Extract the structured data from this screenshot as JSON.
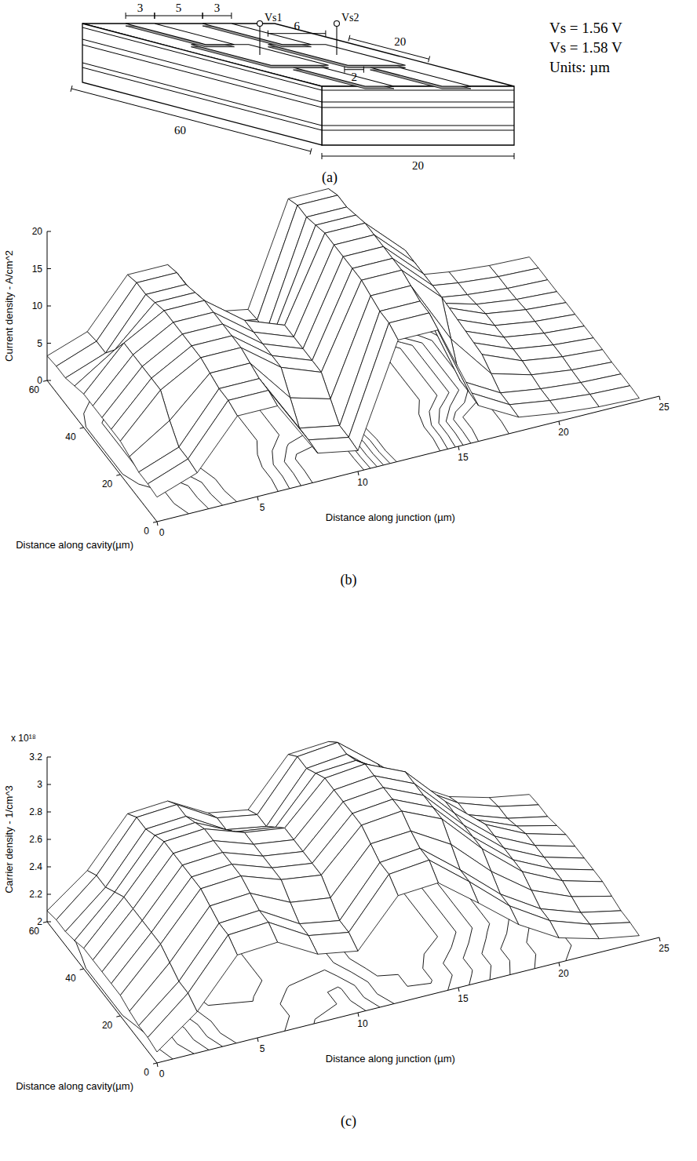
{
  "diagram": {
    "title": "(a)",
    "terminals": [
      "Vs1",
      "Vs2"
    ],
    "dimensions": {
      "stripe_1_width": "3",
      "stripe_gap": "5",
      "stripe_2_width": "3",
      "pad_width": "6",
      "pad_length": "20",
      "pad_gap": "2",
      "cavity_length": "60",
      "device_width": "20"
    },
    "notes": [
      "Vs = 1.56 V",
      "Vs = 1.58 V",
      "Units: µm"
    ]
  },
  "chart_data": [
    {
      "type": "surface",
      "title": "(b)",
      "color": "#000000",
      "x_label": "Distance along junction (µm)",
      "y_label": "Distance along cavity(µm)",
      "z_label": "Current density - A/cm^2",
      "xlim": [
        0,
        25
      ],
      "ylim": [
        0,
        60
      ],
      "zlim": [
        0,
        20
      ],
      "xticks": [
        0,
        5,
        10,
        15,
        20,
        25
      ],
      "yticks": [
        0,
        20,
        40,
        60
      ],
      "zticks": [
        0,
        5,
        10,
        15,
        20
      ],
      "x": [
        0,
        2,
        4,
        6,
        8,
        10,
        12,
        14,
        16,
        18,
        20,
        22,
        24
      ],
      "y": [
        0,
        5,
        10,
        15,
        20,
        25,
        30,
        35,
        40,
        45,
        50,
        55,
        60
      ],
      "z": [
        [
          3.3,
          5.2,
          11.5,
          11.5,
          3.8,
          2.8,
          16.3,
          16.3,
          4.8,
          1.9,
          1.1,
          0.6,
          0.4
        ],
        [
          3.5,
          5.5,
          12,
          12,
          4,
          3,
          17,
          17,
          5,
          2,
          1.2,
          0.7,
          0.5
        ],
        [
          3.5,
          5.5,
          12,
          12,
          4,
          3,
          17,
          17,
          5,
          2,
          1.2,
          0.7,
          0.5
        ],
        [
          4,
          7.5,
          12.5,
          12.5,
          6.5,
          5,
          17.5,
          17.5,
          9,
          3,
          1.5,
          0.8,
          0.5
        ],
        [
          4.5,
          10,
          13,
          13,
          9,
          7,
          18,
          18,
          13,
          4,
          1.8,
          1,
          0.6
        ],
        [
          4.5,
          10,
          13,
          13,
          9,
          7,
          18,
          18,
          13,
          4,
          1.8,
          1,
          0.6
        ],
        [
          4.5,
          10,
          13,
          13,
          9,
          7,
          18,
          18,
          13,
          4,
          1.8,
          1,
          0.6
        ],
        [
          4.5,
          10,
          13,
          13,
          9,
          7,
          18,
          18,
          13,
          4,
          1.8,
          1,
          0.6
        ],
        [
          4.5,
          10,
          13,
          13,
          9,
          7,
          18,
          18,
          13,
          4,
          1.8,
          1,
          0.6
        ],
        [
          4,
          7.5,
          12.5,
          12.5,
          6.5,
          5,
          17.5,
          17.5,
          9,
          3,
          1.5,
          0.8,
          0.5
        ],
        [
          3.5,
          5.5,
          12,
          12,
          4,
          3,
          17,
          17,
          5,
          2,
          1.2,
          0.7,
          0.5
        ],
        [
          3.5,
          5.5,
          12,
          12,
          4,
          3,
          17,
          17,
          5,
          2,
          1.2,
          0.7,
          0.5
        ],
        [
          3.3,
          5.2,
          11.5,
          11.5,
          3.8,
          2.8,
          16.3,
          16.3,
          4.8,
          1.9,
          1.1,
          0.6,
          0.4
        ]
      ]
    },
    {
      "type": "surface",
      "title": "(c)",
      "color": "#000000",
      "annotations": [
        "x 10¹⁸"
      ],
      "x_label": "Distance along junction (µm)",
      "y_label": "Distance along cavity(µm)",
      "z_label": "Carrier density - 1/cm^3",
      "xlim": [
        0,
        25
      ],
      "ylim": [
        0,
        60
      ],
      "zlim": [
        2,
        3.2
      ],
      "xticks": [
        0,
        5,
        10,
        15,
        20,
        25
      ],
      "yticks": [
        0,
        20,
        40,
        60
      ],
      "zticks": [
        2,
        2.2,
        2.4,
        2.6,
        2.8,
        3,
        3.2
      ],
      "x": [
        0,
        2,
        4,
        6,
        8,
        10,
        12,
        14,
        16,
        18,
        20,
        22,
        24
      ],
      "y": [
        0,
        5,
        10,
        15,
        20,
        25,
        30,
        35,
        40,
        45,
        50,
        55,
        60
      ],
      "z": [
        [
          2.08,
          2.3,
          2.64,
          2.66,
          2.5,
          2.45,
          2.78,
          2.8,
          2.58,
          2.35,
          2.18,
          2.1,
          2.05
        ],
        [
          2.1,
          2.35,
          2.7,
          2.72,
          2.55,
          2.5,
          2.85,
          2.88,
          2.65,
          2.4,
          2.22,
          2.12,
          2.06
        ],
        [
          2.1,
          2.35,
          2.7,
          2.72,
          2.55,
          2.5,
          2.85,
          2.88,
          2.65,
          2.4,
          2.22,
          2.12,
          2.06
        ],
        [
          2.12,
          2.4,
          2.74,
          2.76,
          2.62,
          2.58,
          2.9,
          2.92,
          2.75,
          2.48,
          2.27,
          2.15,
          2.08
        ],
        [
          2.15,
          2.45,
          2.78,
          2.8,
          2.7,
          2.66,
          2.95,
          2.98,
          2.85,
          2.56,
          2.32,
          2.18,
          2.1
        ],
        [
          2.15,
          2.45,
          2.78,
          2.8,
          2.7,
          2.66,
          2.95,
          2.98,
          2.85,
          2.56,
          2.32,
          2.18,
          2.1
        ],
        [
          2.15,
          2.45,
          2.78,
          2.8,
          2.7,
          2.66,
          2.95,
          2.98,
          2.85,
          2.56,
          2.32,
          2.18,
          2.1
        ],
        [
          2.15,
          2.45,
          2.78,
          2.8,
          2.7,
          2.66,
          2.95,
          2.98,
          2.85,
          2.56,
          2.32,
          2.18,
          2.1
        ],
        [
          2.15,
          2.45,
          2.78,
          2.8,
          2.7,
          2.66,
          2.95,
          2.98,
          2.85,
          2.56,
          2.32,
          2.18,
          2.1
        ],
        [
          2.12,
          2.4,
          2.74,
          2.76,
          2.62,
          2.58,
          2.9,
          2.92,
          2.75,
          2.48,
          2.27,
          2.15,
          2.08
        ],
        [
          2.1,
          2.35,
          2.7,
          2.72,
          2.55,
          2.5,
          2.85,
          2.88,
          2.65,
          2.4,
          2.22,
          2.12,
          2.06
        ],
        [
          2.1,
          2.35,
          2.7,
          2.72,
          2.55,
          2.5,
          2.85,
          2.88,
          2.65,
          2.4,
          2.22,
          2.12,
          2.06
        ],
        [
          2.08,
          2.3,
          2.64,
          2.66,
          2.5,
          2.45,
          2.78,
          2.8,
          2.58,
          2.35,
          2.18,
          2.1,
          2.05
        ]
      ]
    }
  ]
}
